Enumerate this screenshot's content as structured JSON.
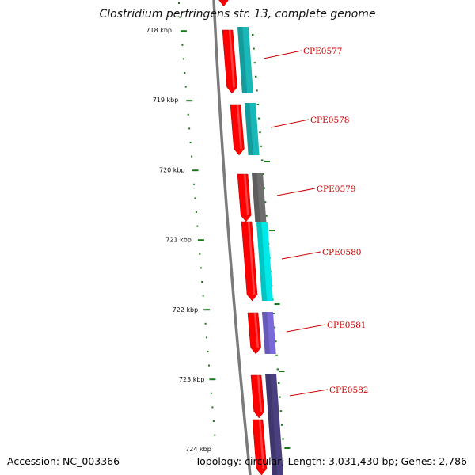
{
  "title": "Clostridium perfringens str. 13, complete genome",
  "accession": "Accession: NC_003366",
  "summary": "Topology: circular; Length: 3,031,430 bp; Genes: 2,786",
  "colors": {
    "backbone": "#7a7a7a",
    "ticks": "#1a7a1a",
    "cds": "#ff0000",
    "label": "#cc0000",
    "cyan_dark": "#19b7b7",
    "cyan_light": "#00e8e8",
    "gray": "#6e6e6e",
    "purple": "#7a6ad8",
    "navy": "#4a4080"
  },
  "ticks": [
    "718 kbp",
    "719 kbp",
    "720 kbp",
    "721 kbp",
    "722 kbp",
    "723 kbp",
    "724 kbp"
  ],
  "genes": [
    {
      "label": "CPE0577",
      "color": "cyan_dark"
    },
    {
      "label": "CPE0578",
      "color": "cyan_dark"
    },
    {
      "label": "CPE0579",
      "color": "gray"
    },
    {
      "label": "CPE0580",
      "color": "cyan_light"
    },
    {
      "label": "CPE0581",
      "color": "purple"
    },
    {
      "label": "CPE0582",
      "color": "navy"
    }
  ]
}
